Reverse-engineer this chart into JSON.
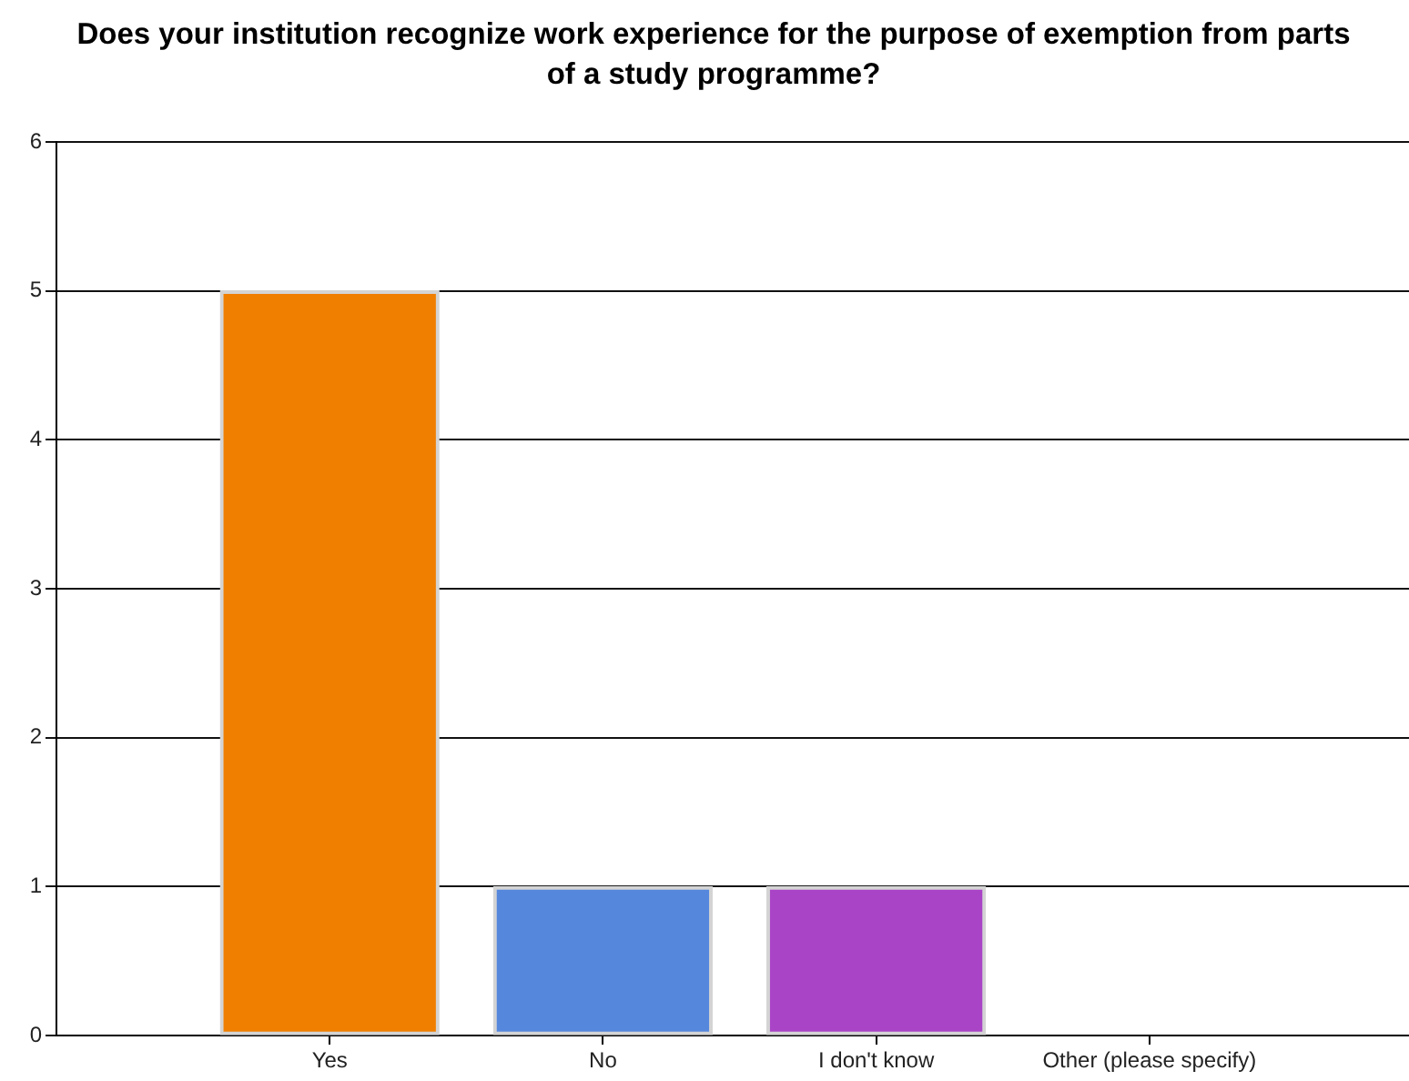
{
  "chart_data": {
    "type": "bar",
    "title": "Does your institution recognize work experience for the purpose of exemption from parts of a study programme?",
    "categories": [
      "Yes",
      "No",
      "I don't know",
      "Other (please specify)"
    ],
    "values": [
      5,
      1,
      1,
      0
    ],
    "colors": [
      "#f07f00",
      "#5587dd",
      "#aa44c6",
      "#d0d0d0"
    ],
    "ylim": [
      0,
      6
    ],
    "yticks": [
      0,
      1,
      2,
      3,
      4,
      5,
      6
    ],
    "grid": "y"
  }
}
